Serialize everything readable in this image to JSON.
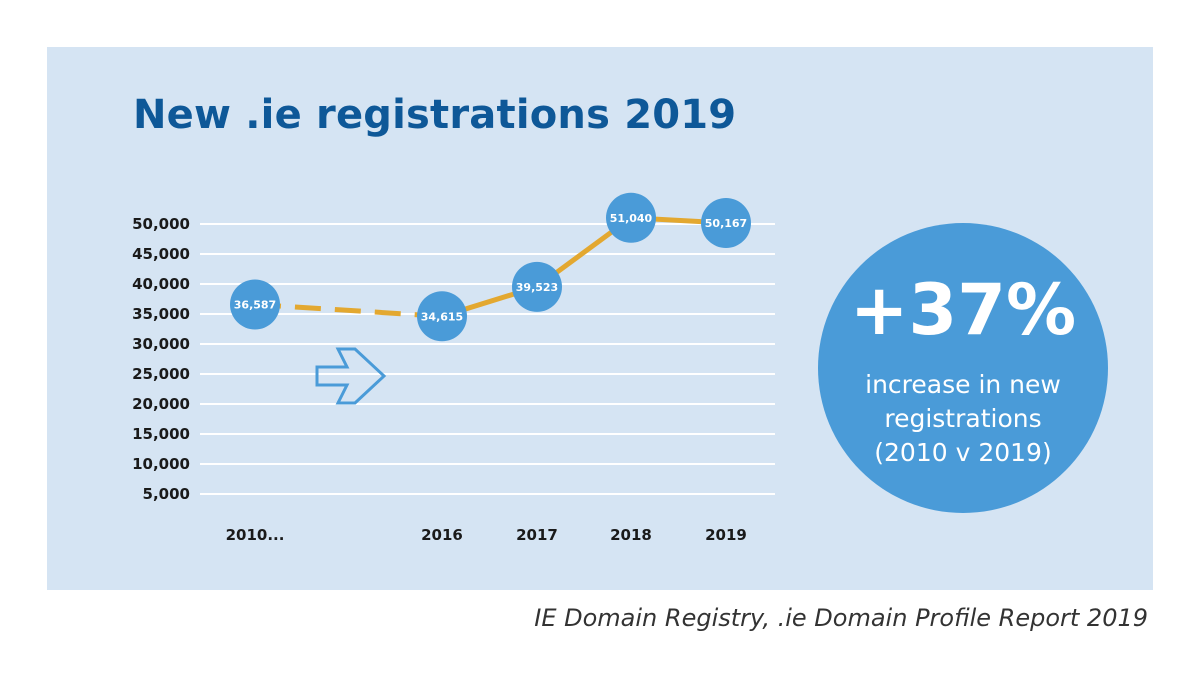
{
  "chart_data": {
    "type": "line",
    "title": "New .ie registrations 2019",
    "xlabel": "",
    "ylabel": "",
    "categories": [
      "2010...",
      "2016",
      "2017",
      "2018",
      "2019"
    ],
    "series": [
      {
        "name": "New .ie registrations",
        "values": [
          36587,
          34615,
          39523,
          51040,
          50167
        ],
        "value_labels": [
          "36,587",
          "34,615",
          "39,523",
          "51,040",
          "50,167"
        ],
        "segment_styles": [
          "dashed",
          "solid",
          "solid",
          "solid"
        ]
      }
    ],
    "y_ticks": [
      5000,
      10000,
      15000,
      20000,
      25000,
      30000,
      35000,
      40000,
      45000,
      50000
    ],
    "y_tick_labels": [
      "5,000",
      "10,000",
      "15,000",
      "20,000",
      "25,000",
      "30,000",
      "35,000",
      "40,000",
      "45,000",
      "50,000"
    ],
    "ylim": [
      5000,
      50000
    ],
    "grid": true
  },
  "stat": {
    "value": "+37%",
    "label": "increase in new registrations (2010 v 2019)"
  },
  "source": "IE Domain Registry, .ie Domain Profile Report 2019",
  "colors": {
    "panel_bg": "#d5e4f3",
    "title": "#0e5898",
    "line": "#e3a830",
    "marker": "#4a9bd8",
    "grid": "#ffffff",
    "axis_text": "#1a1a1a",
    "arrow": "#4a9bd8"
  },
  "icons": {
    "gap_arrow": "right-arrow-outline-icon"
  }
}
